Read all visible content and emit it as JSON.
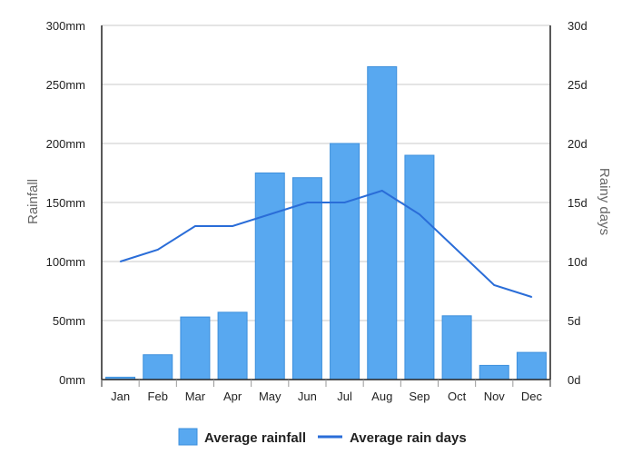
{
  "chart_data": {
    "type": "bar",
    "categories": [
      "Jan",
      "Feb",
      "Mar",
      "Apr",
      "May",
      "Jun",
      "Jul",
      "Aug",
      "Sep",
      "Oct",
      "Nov",
      "Dec"
    ],
    "series": [
      {
        "name": "Average rainfall",
        "type": "bar",
        "axis": "left",
        "color": "#58a8f0",
        "values": [
          2,
          21,
          53,
          57,
          175,
          171,
          200,
          265,
          190,
          54,
          12,
          23
        ]
      },
      {
        "name": "Average rain days",
        "type": "line",
        "axis": "right",
        "color": "#2a6dd8",
        "values": [
          10,
          11,
          13,
          13,
          14,
          15,
          15,
          16,
          14,
          11,
          8,
          7
        ]
      }
    ],
    "ylabel": "Rainfall",
    "y2label": "Rainy days",
    "ylim": [
      0,
      300
    ],
    "y2lim": [
      0,
      30
    ],
    "yticks": [
      "0mm",
      "50mm",
      "100mm",
      "150mm",
      "200mm",
      "250mm",
      "300mm"
    ],
    "y2ticks": [
      "0d",
      "5d",
      "10d",
      "15d",
      "20d",
      "25d",
      "30d"
    ],
    "grid": true,
    "legend_position": "bottom"
  }
}
